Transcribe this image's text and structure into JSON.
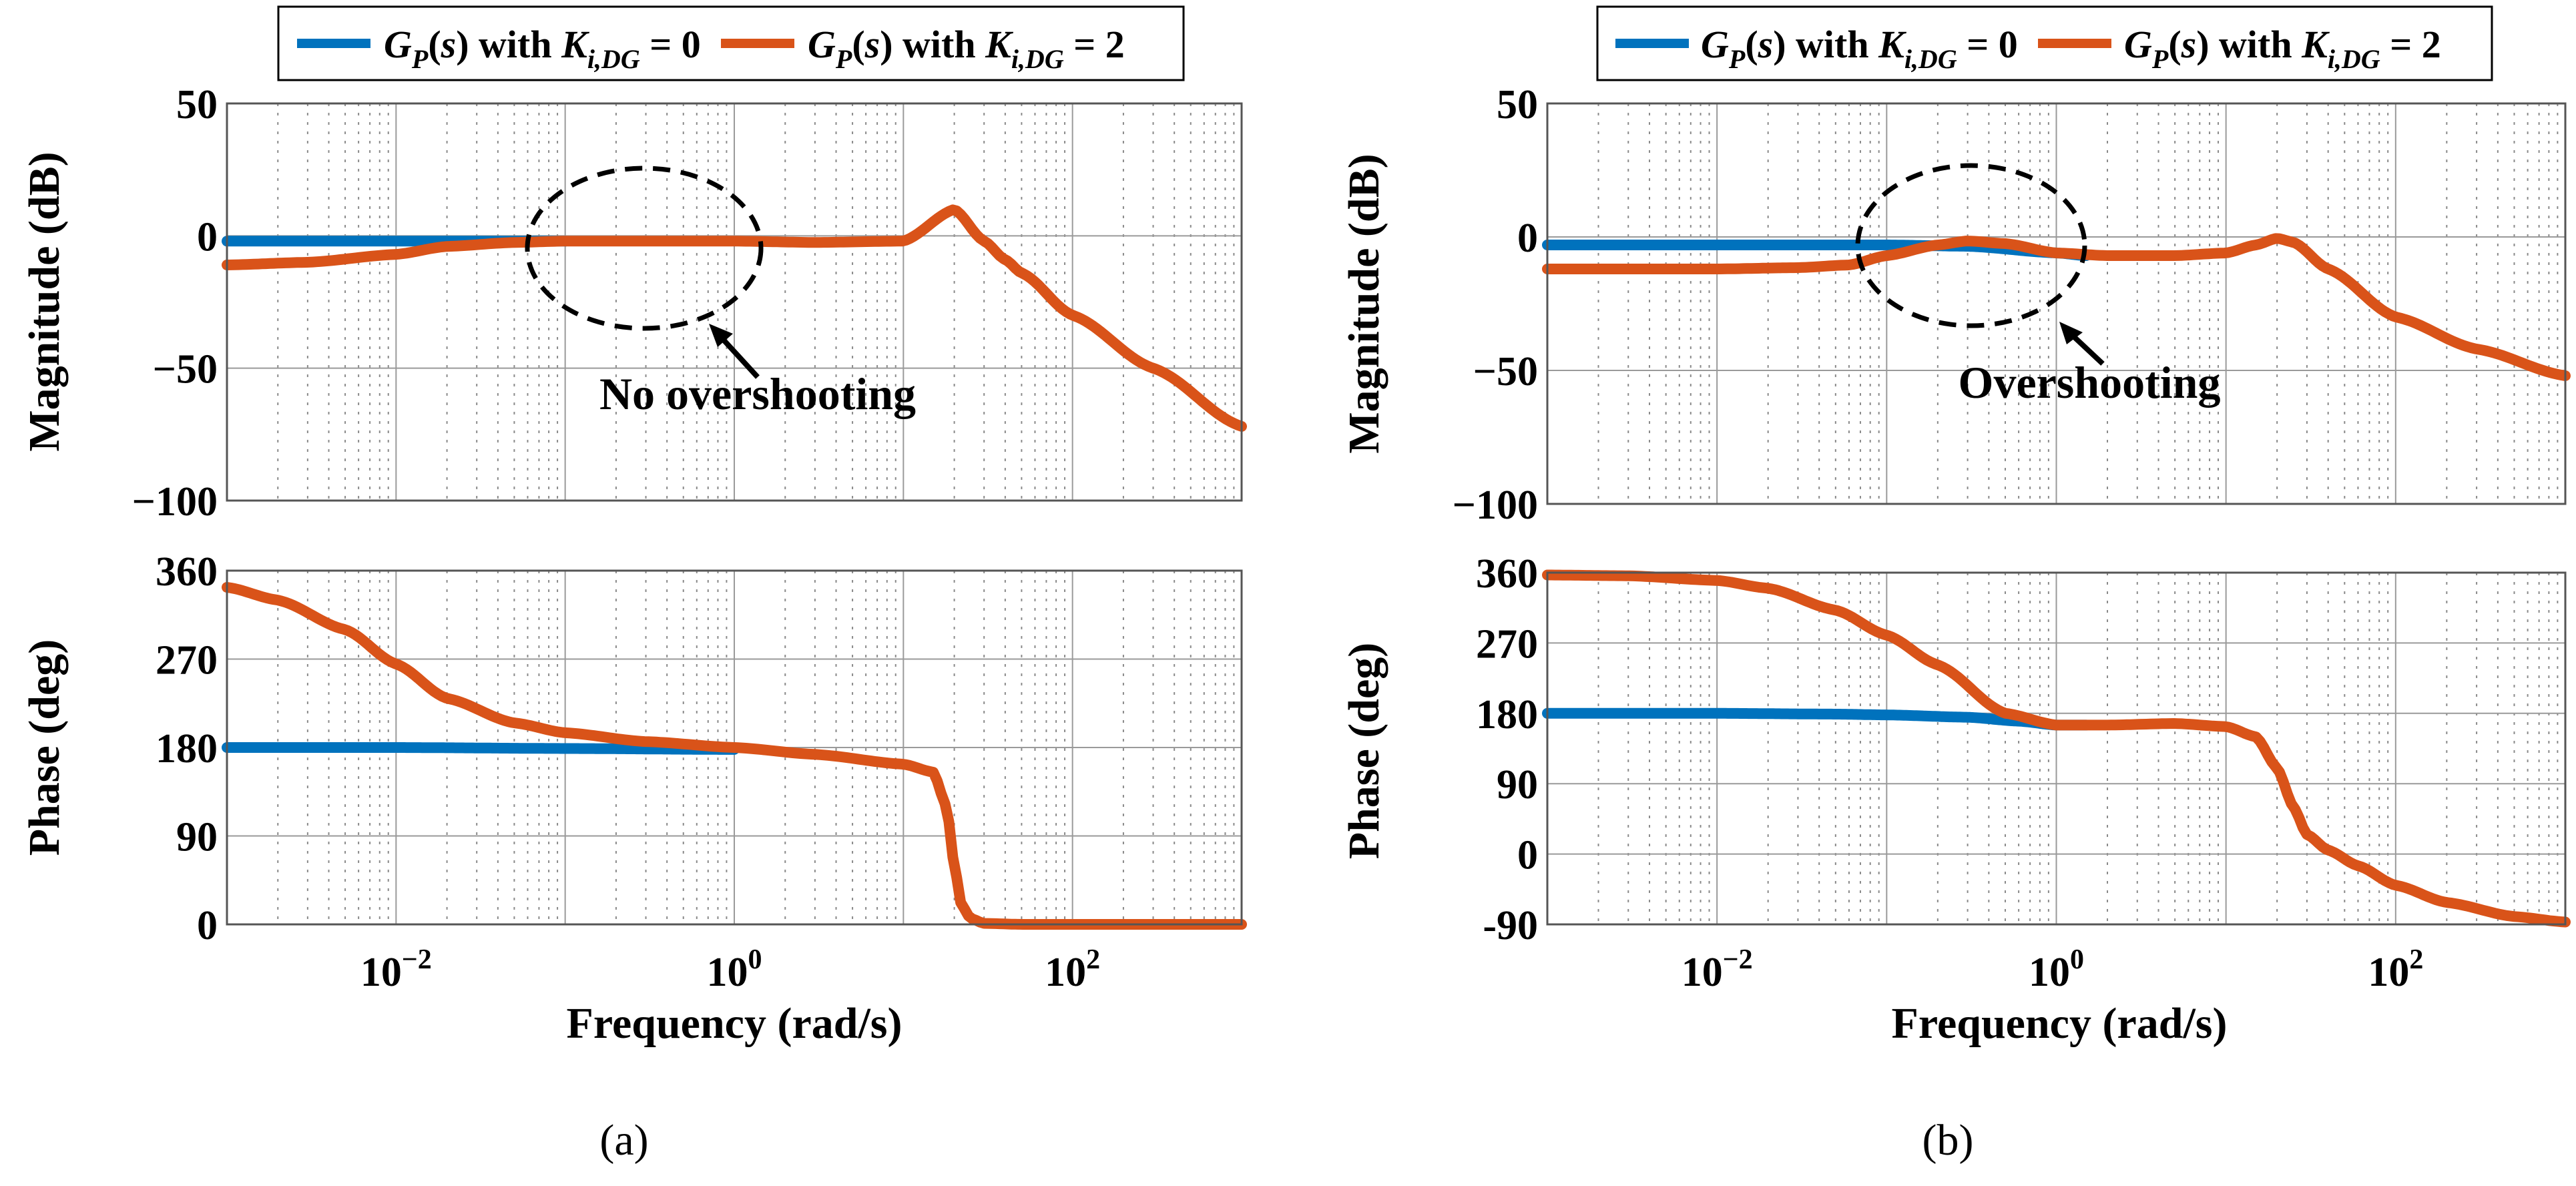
{
  "colors": {
    "blue": "#0072BD",
    "orange": "#D95319"
  },
  "legend": {
    "left": {
      "blue_label": "G_P(s) with K_i,DG = 0",
      "orange_label": "G_P(s) with K_i,DG = 2"
    },
    "right": {
      "blue_label": "G_P(s) with K_i,DG = 0",
      "orange_label": "G_P(s) with K_i,DG = 2"
    }
  },
  "chart_data": [
    {
      "type": "line",
      "panel": "(a)",
      "caption": "(a)",
      "xscale": "log",
      "xlim": [
        0.001,
        1000
      ],
      "xticks": [
        0.01,
        1,
        100
      ],
      "xtick_labels": [
        "10^-2",
        "10^0",
        "10^2"
      ],
      "xlabel": "Frequency (rad/s)",
      "magnitude": {
        "ylabel": "Magnitude (dB)",
        "ylim": [
          -100,
          50
        ],
        "yticks": [
          50,
          0,
          -50,
          -100
        ],
        "ytick_labels": [
          "50",
          "0",
          "−50",
          "−100"
        ],
        "series": [
          {
            "name": "G_P(s) with K_i,DG = 0",
            "color": "blue",
            "x": [
              0.001,
              0.01,
              0.05,
              0.1
            ],
            "y": [
              -2,
              -2,
              -2,
              -2
            ]
          },
          {
            "name": "G_P(s) with K_i,DG = 2",
            "color": "orange",
            "x": [
              0.001,
              0.003,
              0.01,
              0.02,
              0.05,
              0.1,
              0.3,
              1,
              3,
              10,
              20,
              30,
              40,
              50,
              100,
              300,
              1000
            ],
            "y": [
              -11,
              -10,
              -7,
              -4,
              -2.5,
              -2,
              -2,
              -2,
              -2.5,
              -2,
              10,
              -2,
              -9,
              -14,
              -30,
              -50,
              -72
            ]
          }
        ],
        "annotation": {
          "text": "No overshooting",
          "target_x": 0.3,
          "target_y": -2
        }
      },
      "phase": {
        "ylabel": "Phase (deg)",
        "ylim": [
          0,
          360
        ],
        "yticks": [
          360,
          270,
          180,
          90,
          0
        ],
        "ytick_labels": [
          "360",
          "270",
          "180",
          "90",
          "0"
        ],
        "series": [
          {
            "name": "G_P(s) with K_i,DG = 0",
            "color": "blue",
            "x": [
              0.001,
              0.01,
              0.1,
              1
            ],
            "y": [
              180,
              180,
              179,
              178
            ]
          },
          {
            "name": "G_P(s) with K_i,DG = 2",
            "color": "orange",
            "x": [
              0.001,
              0.002,
              0.005,
              0.01,
              0.02,
              0.05,
              0.1,
              0.3,
              1,
              3,
              10,
              15,
              18,
              20,
              22,
              25,
              30,
              50,
              100,
              1000
            ],
            "y": [
              343,
              330,
              300,
              265,
              230,
              205,
              195,
              186,
              180,
              173,
              163,
              155,
              120,
              60,
              20,
              6,
              1,
              0,
              0,
              0
            ]
          }
        ]
      }
    },
    {
      "type": "line",
      "panel": "(b)",
      "caption": "(b)",
      "xscale": "log",
      "xlim": [
        0.001,
        1000
      ],
      "xticks": [
        0.01,
        1,
        100
      ],
      "xtick_labels": [
        "10^-2",
        "10^0",
        "10^2"
      ],
      "xlabel": "Frequency (rad/s)",
      "magnitude": {
        "ylabel": "Magnitude (dB)",
        "ylim": [
          -100,
          50
        ],
        "yticks": [
          50,
          0,
          -50,
          -100
        ],
        "ytick_labels": [
          "50",
          "0",
          "−50",
          "−100"
        ],
        "series": [
          {
            "name": "G_P(s) with K_i,DG = 0",
            "color": "blue",
            "x": [
              0.001,
              0.01,
              0.05,
              0.1,
              0.3,
              1,
              1.5
            ],
            "y": [
              -3,
              -3,
              -3,
              -3,
              -3.5,
              -6,
              -7
            ]
          },
          {
            "name": "G_P(s) with K_i,DG = 2",
            "color": "orange",
            "x": [
              0.001,
              0.01,
              0.03,
              0.06,
              0.1,
              0.2,
              0.3,
              0.5,
              1,
              2,
              5,
              10,
              15,
              20,
              25,
              40,
              100,
              300,
              1000
            ],
            "y": [
              -12,
              -12,
              -11.5,
              -10.5,
              -7,
              -3,
              -1.5,
              -2.5,
              -6,
              -7,
              -7,
              -6,
              -3,
              -0.5,
              -2,
              -12,
              -30,
              -42,
              -52
            ]
          }
        ],
        "annotation": {
          "text": "Overshooting",
          "target_x": 1,
          "target_y": -5
        }
      },
      "phase": {
        "ylabel": "Phase (deg)",
        "ylim": [
          -90,
          360
        ],
        "yticks": [
          360,
          270,
          180,
          90,
          0,
          -90
        ],
        "ytick_labels": [
          "360",
          "270",
          "180",
          "90",
          "0",
          "-90"
        ],
        "series": [
          {
            "name": "G_P(s) with K_i,DG = 0",
            "color": "blue",
            "x": [
              0.001,
              0.01,
              0.05,
              0.1,
              0.3,
              0.6,
              1,
              1.5
            ],
            "y": [
              180,
              180,
              179,
              178,
              175,
              170,
              165,
              165
            ]
          },
          {
            "name": "G_P(s) with K_i,DG = 2",
            "color": "orange",
            "x": [
              0.001,
              0.003,
              0.01,
              0.02,
              0.05,
              0.1,
              0.2,
              0.5,
              1,
              2,
              5,
              10,
              15,
              20,
              25,
              30,
              40,
              60,
              100,
              200,
              500,
              1000
            ],
            "y": [
              357,
              356,
              350,
              340,
              312,
              280,
              242,
              180,
              165,
              165,
              167,
              163,
              150,
              110,
              60,
              25,
              5,
              -15,
              -40,
              -62,
              -80,
              -87
            ]
          }
        ]
      }
    }
  ]
}
